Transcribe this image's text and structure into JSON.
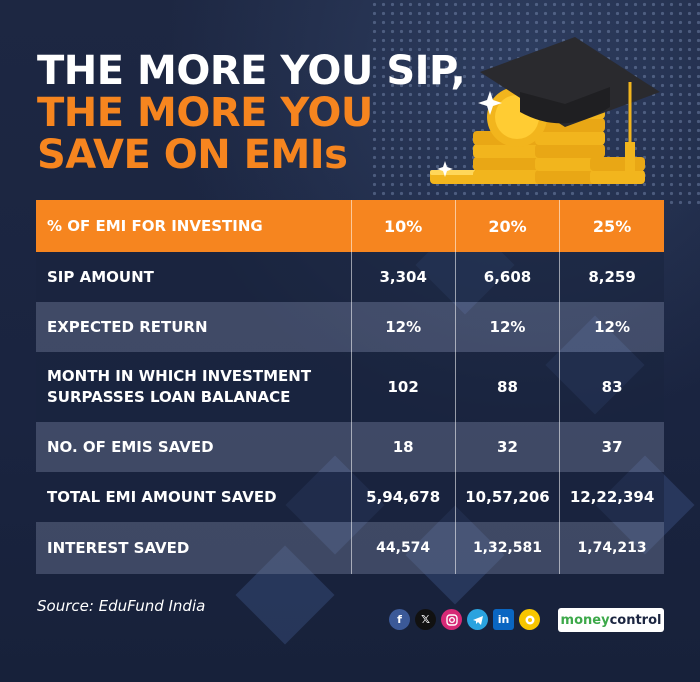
{
  "headline": {
    "line1": "THE MORE YOU SIP,",
    "line2": "THE MORE YOU",
    "line3": "SAVE ON EMIs"
  },
  "colors": {
    "accent_orange": "#f6851f",
    "background_navy": "#1b2540",
    "text_white": "#ffffff"
  },
  "table": {
    "header": {
      "label": "% OF EMI FOR INVESTING",
      "cols": [
        "10%",
        "20%",
        "25%"
      ]
    },
    "rows": [
      {
        "label": "SIP AMOUNT",
        "values": [
          "3,304",
          "6,608",
          "8,259"
        ]
      },
      {
        "label": "EXPECTED RETURN",
        "values": [
          "12%",
          "12%",
          "12%"
        ]
      },
      {
        "label_line1": "MONTH IN WHICH INVESTMENT",
        "label_line2": "SURPASSES LOAN BALANACE",
        "values": [
          "102",
          "88",
          "83"
        ]
      },
      {
        "label": "NO. OF EMIS SAVED",
        "values": [
          "18",
          "32",
          "37"
        ]
      },
      {
        "label": "TOTAL EMI AMOUNT SAVED",
        "values": [
          "5,94,678",
          "10,57,206",
          "12,22,394"
        ]
      },
      {
        "label": "INTEREST SAVED",
        "values": [
          "44,574",
          "1,32,581",
          "1,74,213"
        ]
      }
    ]
  },
  "source": "Source: EduFund India",
  "social_icons": [
    "facebook-icon",
    "x-icon",
    "instagram-icon",
    "telegram-icon",
    "linkedin-icon",
    "koo-icon"
  ],
  "social_glyphs": {
    "facebook": "f",
    "x": "𝕏",
    "linkedin": "in"
  },
  "brand": {
    "part1": "money",
    "part2": "control"
  }
}
